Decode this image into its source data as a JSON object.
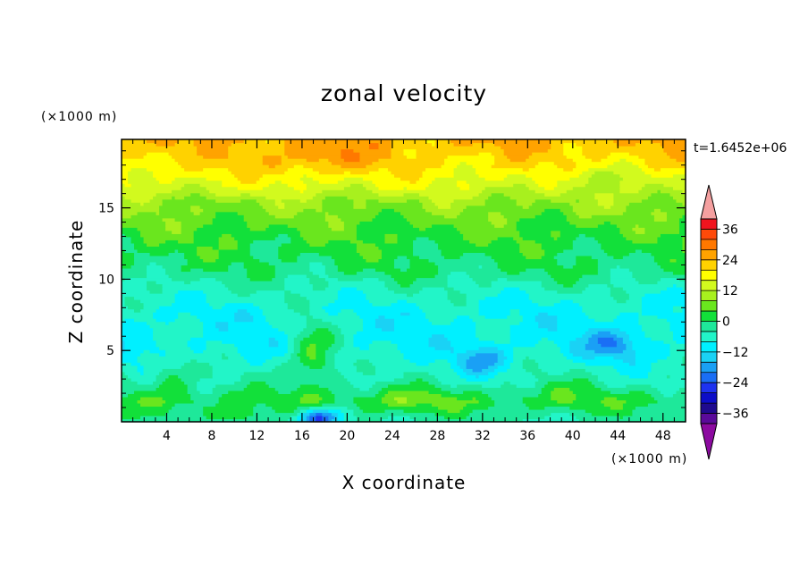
{
  "chart_data": {
    "type": "heatmap",
    "title": "zonal velocity",
    "xlabel": "X coordinate",
    "ylabel": "Z coordinate",
    "x_unit": "(×1000 m)",
    "y_unit": "(×1000 m)",
    "time_label": "t=1.6452e+06",
    "xlim": [
      0,
      50
    ],
    "ylim": [
      0,
      19.8
    ],
    "x_ticks": [
      4,
      8,
      12,
      16,
      20,
      24,
      28,
      32,
      36,
      40,
      44,
      48
    ],
    "y_ticks": [
      5,
      10,
      15
    ],
    "colorbar": {
      "levels": [
        -40,
        -36,
        -32,
        -28,
        -24,
        -20,
        -16,
        -12,
        -8,
        -4,
        0,
        4,
        8,
        12,
        16,
        20,
        24,
        28,
        32,
        36,
        40
      ],
      "tick_labels": [
        36,
        24,
        12,
        0,
        -12,
        -24,
        -36
      ],
      "colors": [
        "#5a0a9a",
        "#1f0a8f",
        "#0d0dc8",
        "#1e32f0",
        "#1a6ef5",
        "#1aa0f5",
        "#1ad2f5",
        "#00f0ff",
        "#22f5c8",
        "#1ee89a",
        "#12e03a",
        "#6ae61e",
        "#a8f01e",
        "#d2fa1e",
        "#ffff00",
        "#ffd200",
        "#ffa300",
        "#ff7800",
        "#ff4a0a",
        "#f0141e"
      ],
      "under_color": "#8c0aa0",
      "over_color": "#f5a0a0"
    },
    "field_model": {
      "description_free": true,
      "layers": [
        [
          19.8,
          24
        ],
        [
          18,
          20
        ],
        [
          16.5,
          15
        ],
        [
          15.5,
          9
        ],
        [
          14,
          5
        ],
        [
          12,
          1.5
        ],
        [
          10.5,
          -1
        ],
        [
          9,
          -6
        ],
        [
          7.5,
          -9
        ],
        [
          5,
          -9
        ],
        [
          3,
          -5
        ],
        [
          1.5,
          2
        ],
        [
          0,
          -4
        ]
      ],
      "blobs": [
        [
          17.5,
          18.5,
          5,
          1.2,
          6
        ],
        [
          42,
          17,
          4,
          1,
          -6
        ],
        [
          17,
          4.8,
          2.2,
          2.2,
          13
        ],
        [
          32,
          4.3,
          2,
          1,
          -10
        ],
        [
          43.5,
          5.5,
          2.5,
          1,
          -10
        ],
        [
          17.5,
          0.3,
          2,
          0.7,
          -22
        ],
        [
          4.5,
          3.2,
          2,
          1.5,
          7
        ],
        [
          25,
          1.5,
          4,
          1,
          5
        ],
        [
          39,
          2.3,
          3,
          1.2,
          3
        ],
        [
          10,
          0.5,
          2,
          0.6,
          8
        ]
      ]
    }
  }
}
